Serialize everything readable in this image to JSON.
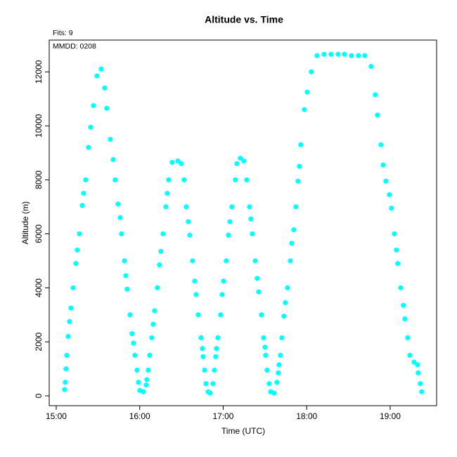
{
  "chart_data": {
    "type": "scatter",
    "title": "Altitude  vs. Time",
    "annotations": [
      "Fits: 9",
      "MMDD: 0208"
    ],
    "x_label": "Time (UTC)",
    "y_label": "Altitude (m)",
    "color": "#00ffff",
    "grid": false,
    "xlim": [
      14.916,
      19.556
    ],
    "ylim": [
      -365,
      13177
    ],
    "xticks": [
      {
        "value": 15,
        "label": "15:00"
      },
      {
        "value": 16,
        "label": "16:00"
      },
      {
        "value": 17,
        "label": "17:00"
      },
      {
        "value": 18,
        "label": "18:00"
      },
      {
        "value": 19,
        "label": "19:00"
      }
    ],
    "yticks": [
      0,
      2000,
      4000,
      6000,
      8000,
      10000,
      12000
    ],
    "x": [
      15.101,
      15.109,
      15.118,
      15.126,
      15.143,
      15.16,
      15.177,
      15.202,
      15.236,
      15.253,
      15.278,
      15.312,
      15.328,
      15.354,
      15.387,
      15.413,
      15.446,
      15.488,
      15.539,
      15.581,
      15.606,
      15.648,
      15.682,
      15.707,
      15.741,
      15.766,
      15.783,
      15.817,
      15.834,
      15.85,
      15.884,
      15.909,
      15.926,
      15.943,
      15.968,
      15.985,
      16.002,
      16.044,
      16.078,
      16.086,
      16.103,
      16.12,
      16.145,
      16.162,
      16.179,
      16.212,
      16.237,
      16.254,
      16.28,
      16.314,
      16.33,
      16.347,
      16.389,
      16.457,
      16.499,
      16.532,
      16.558,
      16.583,
      16.6,
      16.633,
      16.659,
      16.676,
      16.701,
      16.735,
      16.751,
      16.76,
      16.777,
      16.794,
      16.819,
      16.844,
      16.878,
      16.895,
      16.911,
      16.92,
      16.937,
      16.97,
      16.987,
      17.004,
      17.038,
      17.063,
      17.08,
      17.105,
      17.147,
      17.164,
      17.206,
      17.248,
      17.282,
      17.316,
      17.332,
      17.349,
      17.383,
      17.408,
      17.425,
      17.459,
      17.484,
      17.501,
      17.509,
      17.526,
      17.551,
      17.568,
      17.61,
      17.644,
      17.661,
      17.669,
      17.686,
      17.703,
      17.728,
      17.745,
      17.77,
      17.804,
      17.821,
      17.846,
      17.871,
      17.896,
      17.913,
      17.93,
      17.972,
      18.006,
      18.056,
      18.124,
      18.208,
      18.292,
      18.376,
      18.452,
      18.536,
      18.621,
      18.696,
      18.772,
      18.823,
      18.848,
      18.89,
      18.916,
      18.949,
      18.991,
      19.016,
      19.05,
      19.075,
      19.092,
      19.126,
      19.159,
      19.176,
      19.21,
      19.235,
      19.286,
      19.328,
      19.336,
      19.362,
      19.378
    ],
    "values": [
      230,
      500,
      1000,
      1500,
      2200,
      2750,
      3250,
      4000,
      4900,
      5400,
      6000,
      7050,
      7500,
      8000,
      9200,
      9950,
      10750,
      11850,
      12100,
      11400,
      10650,
      9500,
      8750,
      8000,
      7100,
      6600,
      6000,
      5000,
      4450,
      3950,
      3000,
      2300,
      1950,
      1500,
      950,
      500,
      200,
      150,
      400,
      600,
      950,
      1500,
      2150,
      2650,
      3150,
      4000,
      4850,
      5350,
      6000,
      7000,
      7500,
      8000,
      8650,
      8700,
      8600,
      8000,
      7000,
      6450,
      5950,
      5000,
      4250,
      3750,
      3000,
      2150,
      1750,
      1450,
      950,
      450,
      150,
      100,
      450,
      950,
      1450,
      1750,
      2150,
      3000,
      3750,
      4250,
      5000,
      5950,
      6450,
      7000,
      8000,
      8600,
      8800,
      8700,
      8000,
      7000,
      6550,
      6000,
      5000,
      4350,
      3850,
      3000,
      2150,
      1800,
      1500,
      950,
      450,
      150,
      100,
      500,
      850,
      1150,
      1500,
      2150,
      2950,
      3450,
      4000,
      5000,
      5650,
      6150,
      7000,
      7950,
      8500,
      9300,
      10600,
      11250,
      12000,
      12600,
      12650,
      12650,
      12650,
      12650,
      12600,
      12600,
      12600,
      12200,
      11150,
      10400,
      9300,
      8550,
      7950,
      7450,
      6950,
      6000,
      5400,
      4900,
      4000,
      3350,
      2850,
      2150,
      1500,
      1250,
      1150,
      850,
      450,
      150
    ]
  }
}
